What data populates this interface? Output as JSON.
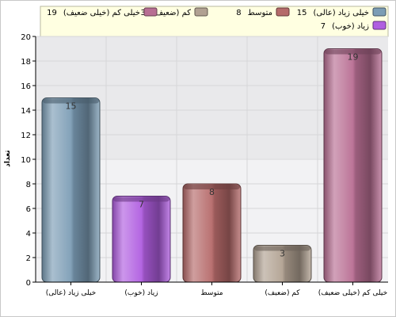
{
  "chart_data": {
    "type": "bar",
    "title": "",
    "xlabel": "",
    "ylabel": "تعداد",
    "ylim": [
      0,
      20
    ],
    "yticks": [
      0,
      2,
      4,
      6,
      8,
      10,
      12,
      14,
      16,
      18,
      20
    ],
    "grid": true,
    "legend_position": "top",
    "categories": [
      "(خیلی زیاد (عالی",
      "(زیاد (خوب",
      "متوسط",
      "(کم (ضعیف",
      "(خیلی کم (خیلی ضعیف"
    ],
    "values": [
      15,
      7,
      8,
      3,
      19
    ],
    "colors": [
      "#7c9db5",
      "#b05ee0",
      "#b56a6a",
      "#b1a192",
      "#b86e93"
    ],
    "legend": [
      {
        "label": "(خیلی زیاد (عالی",
        "value": "15",
        "color": "#7c9db5"
      },
      {
        "label": "متوسط",
        "value": "8",
        "color": "#b56a6a"
      },
      {
        "label": "(کم (ضعیف",
        "value": "3",
        "color": "#b1a192"
      },
      {
        "label": "(خیلی کم (خیلی ضعیف",
        "value": "19",
        "color": "#b86e93"
      },
      {
        "label": "(زیاد (خوب",
        "value": "7",
        "color": "#b05ee0"
      }
    ]
  }
}
